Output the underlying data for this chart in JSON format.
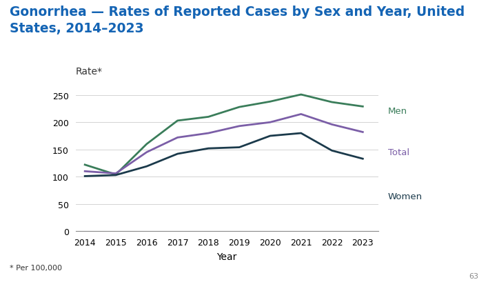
{
  "title": "Gonorrhea — Rates of Reported Cases by Sex and Year, United\nStates, 2014–2023",
  "title_color": "#1464B4",
  "title_fontsize": 13.5,
  "xlabel": "Year",
  "ylabel": "Rate*",
  "footnote": "* Per 100,000",
  "page_number": "63",
  "years": [
    2014,
    2015,
    2016,
    2017,
    2018,
    2019,
    2020,
    2021,
    2022,
    2023
  ],
  "men": [
    122,
    104,
    160,
    203,
    210,
    228,
    238,
    251,
    237,
    229
  ],
  "total": [
    110,
    106,
    145,
    172,
    180,
    193,
    200,
    215,
    196,
    182
  ],
  "women": [
    101,
    103,
    119,
    142,
    152,
    154,
    175,
    180,
    148,
    133
  ],
  "men_color": "#3A7D5A",
  "total_color": "#7B5EA7",
  "women_color": "#1B3A4B",
  "line_width": 2.0,
  "ylim": [
    0,
    270
  ],
  "yticks": [
    0,
    50,
    100,
    150,
    200,
    250
  ],
  "background_color": "#FFFFFF",
  "tick_fontsize": 9,
  "label_fontsize": 10,
  "legend_fontsize": 9.5,
  "footnote_fontsize": 8,
  "pagenumber_fontsize": 8
}
